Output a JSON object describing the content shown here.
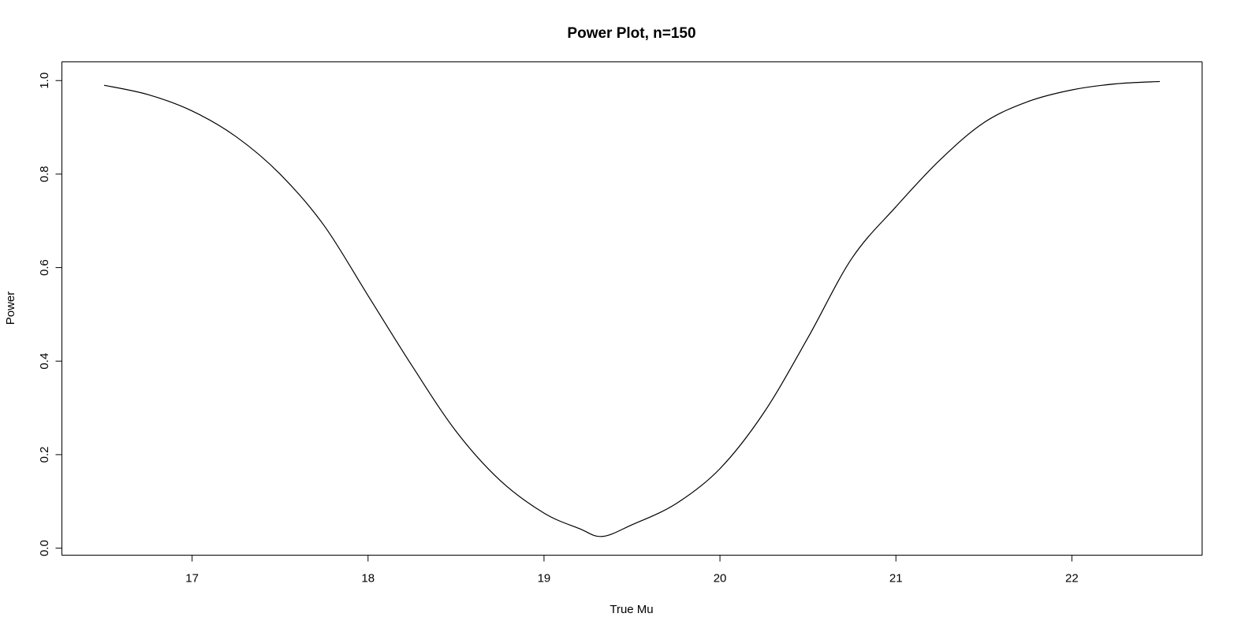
{
  "chart_data": {
    "type": "line",
    "title": "Power Plot, n=150",
    "xlabel": "True Mu",
    "ylabel": "Power",
    "xlim": [
      16.26,
      22.74
    ],
    "ylim": [
      -0.015,
      1.04
    ],
    "x_ticks": [
      17,
      18,
      19,
      20,
      21,
      22
    ],
    "x_tick_labels": [
      "17",
      "18",
      "19",
      "20",
      "21",
      "22"
    ],
    "y_ticks": [
      0.0,
      0.2,
      0.4,
      0.6,
      0.8,
      1.0
    ],
    "y_tick_labels": [
      "0.0",
      "0.2",
      "0.4",
      "0.6",
      "0.8",
      "1.0"
    ],
    "grid": false,
    "series": [
      {
        "x": [
          16.5,
          16.75,
          17.0,
          17.25,
          17.5,
          17.75,
          18.0,
          18.25,
          18.5,
          18.75,
          19.0,
          19.2,
          19.33,
          19.5,
          19.75,
          20.0,
          20.25,
          20.5,
          20.75,
          21.0,
          21.25,
          21.5,
          21.75,
          22.0,
          22.25,
          22.5
        ],
        "y": [
          0.99,
          0.97,
          0.935,
          0.88,
          0.8,
          0.69,
          0.54,
          0.39,
          0.25,
          0.145,
          0.075,
          0.042,
          0.025,
          0.05,
          0.095,
          0.17,
          0.29,
          0.45,
          0.62,
          0.73,
          0.83,
          0.91,
          0.955,
          0.98,
          0.993,
          0.998
        ]
      }
    ]
  }
}
